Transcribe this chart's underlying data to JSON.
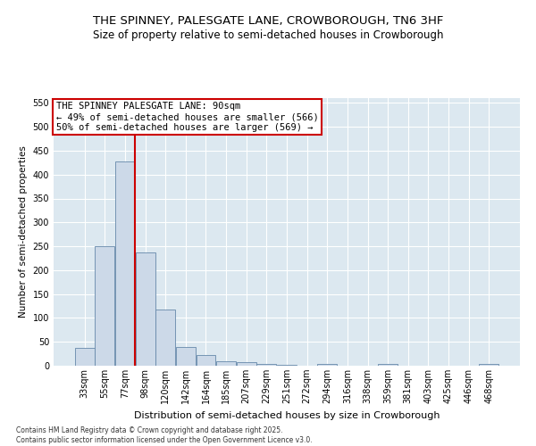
{
  "title": "THE SPINNEY, PALESGATE LANE, CROWBOROUGH, TN6 3HF",
  "subtitle": "Size of property relative to semi-detached houses in Crowborough",
  "xlabel": "Distribution of semi-detached houses by size in Crowborough",
  "ylabel": "Number of semi-detached properties",
  "categories": [
    "33sqm",
    "55sqm",
    "77sqm",
    "98sqm",
    "120sqm",
    "142sqm",
    "164sqm",
    "185sqm",
    "207sqm",
    "229sqm",
    "251sqm",
    "272sqm",
    "294sqm",
    "316sqm",
    "338sqm",
    "359sqm",
    "381sqm",
    "403sqm",
    "425sqm",
    "446sqm",
    "468sqm"
  ],
  "values": [
    38,
    250,
    428,
    237,
    118,
    40,
    23,
    10,
    8,
    4,
    2,
    0,
    3,
    0,
    0,
    3,
    0,
    0,
    0,
    0,
    3
  ],
  "bar_color": "#ccd9e8",
  "bar_edge_color": "#6688aa",
  "vline_color": "#cc0000",
  "vline_x": 2.5,
  "annotation_title": "THE SPINNEY PALESGATE LANE: 90sqm",
  "annotation_line1": "← 49% of semi-detached houses are smaller (566)",
  "annotation_line2": "50% of semi-detached houses are larger (569) →",
  "annotation_box_color": "#cc0000",
  "ylim": [
    0,
    560
  ],
  "yticks": [
    0,
    50,
    100,
    150,
    200,
    250,
    300,
    350,
    400,
    450,
    500,
    550
  ],
  "background_color": "#dce8f0",
  "grid_color": "#ffffff",
  "footer_line1": "Contains HM Land Registry data © Crown copyright and database right 2025.",
  "footer_line2": "Contains public sector information licensed under the Open Government Licence v3.0.",
  "title_fontsize": 9.5,
  "subtitle_fontsize": 8.5,
  "ylabel_fontsize": 7.5,
  "xlabel_fontsize": 8,
  "tick_fontsize": 7,
  "annotation_fontsize": 7.5,
  "footer_fontsize": 5.5
}
